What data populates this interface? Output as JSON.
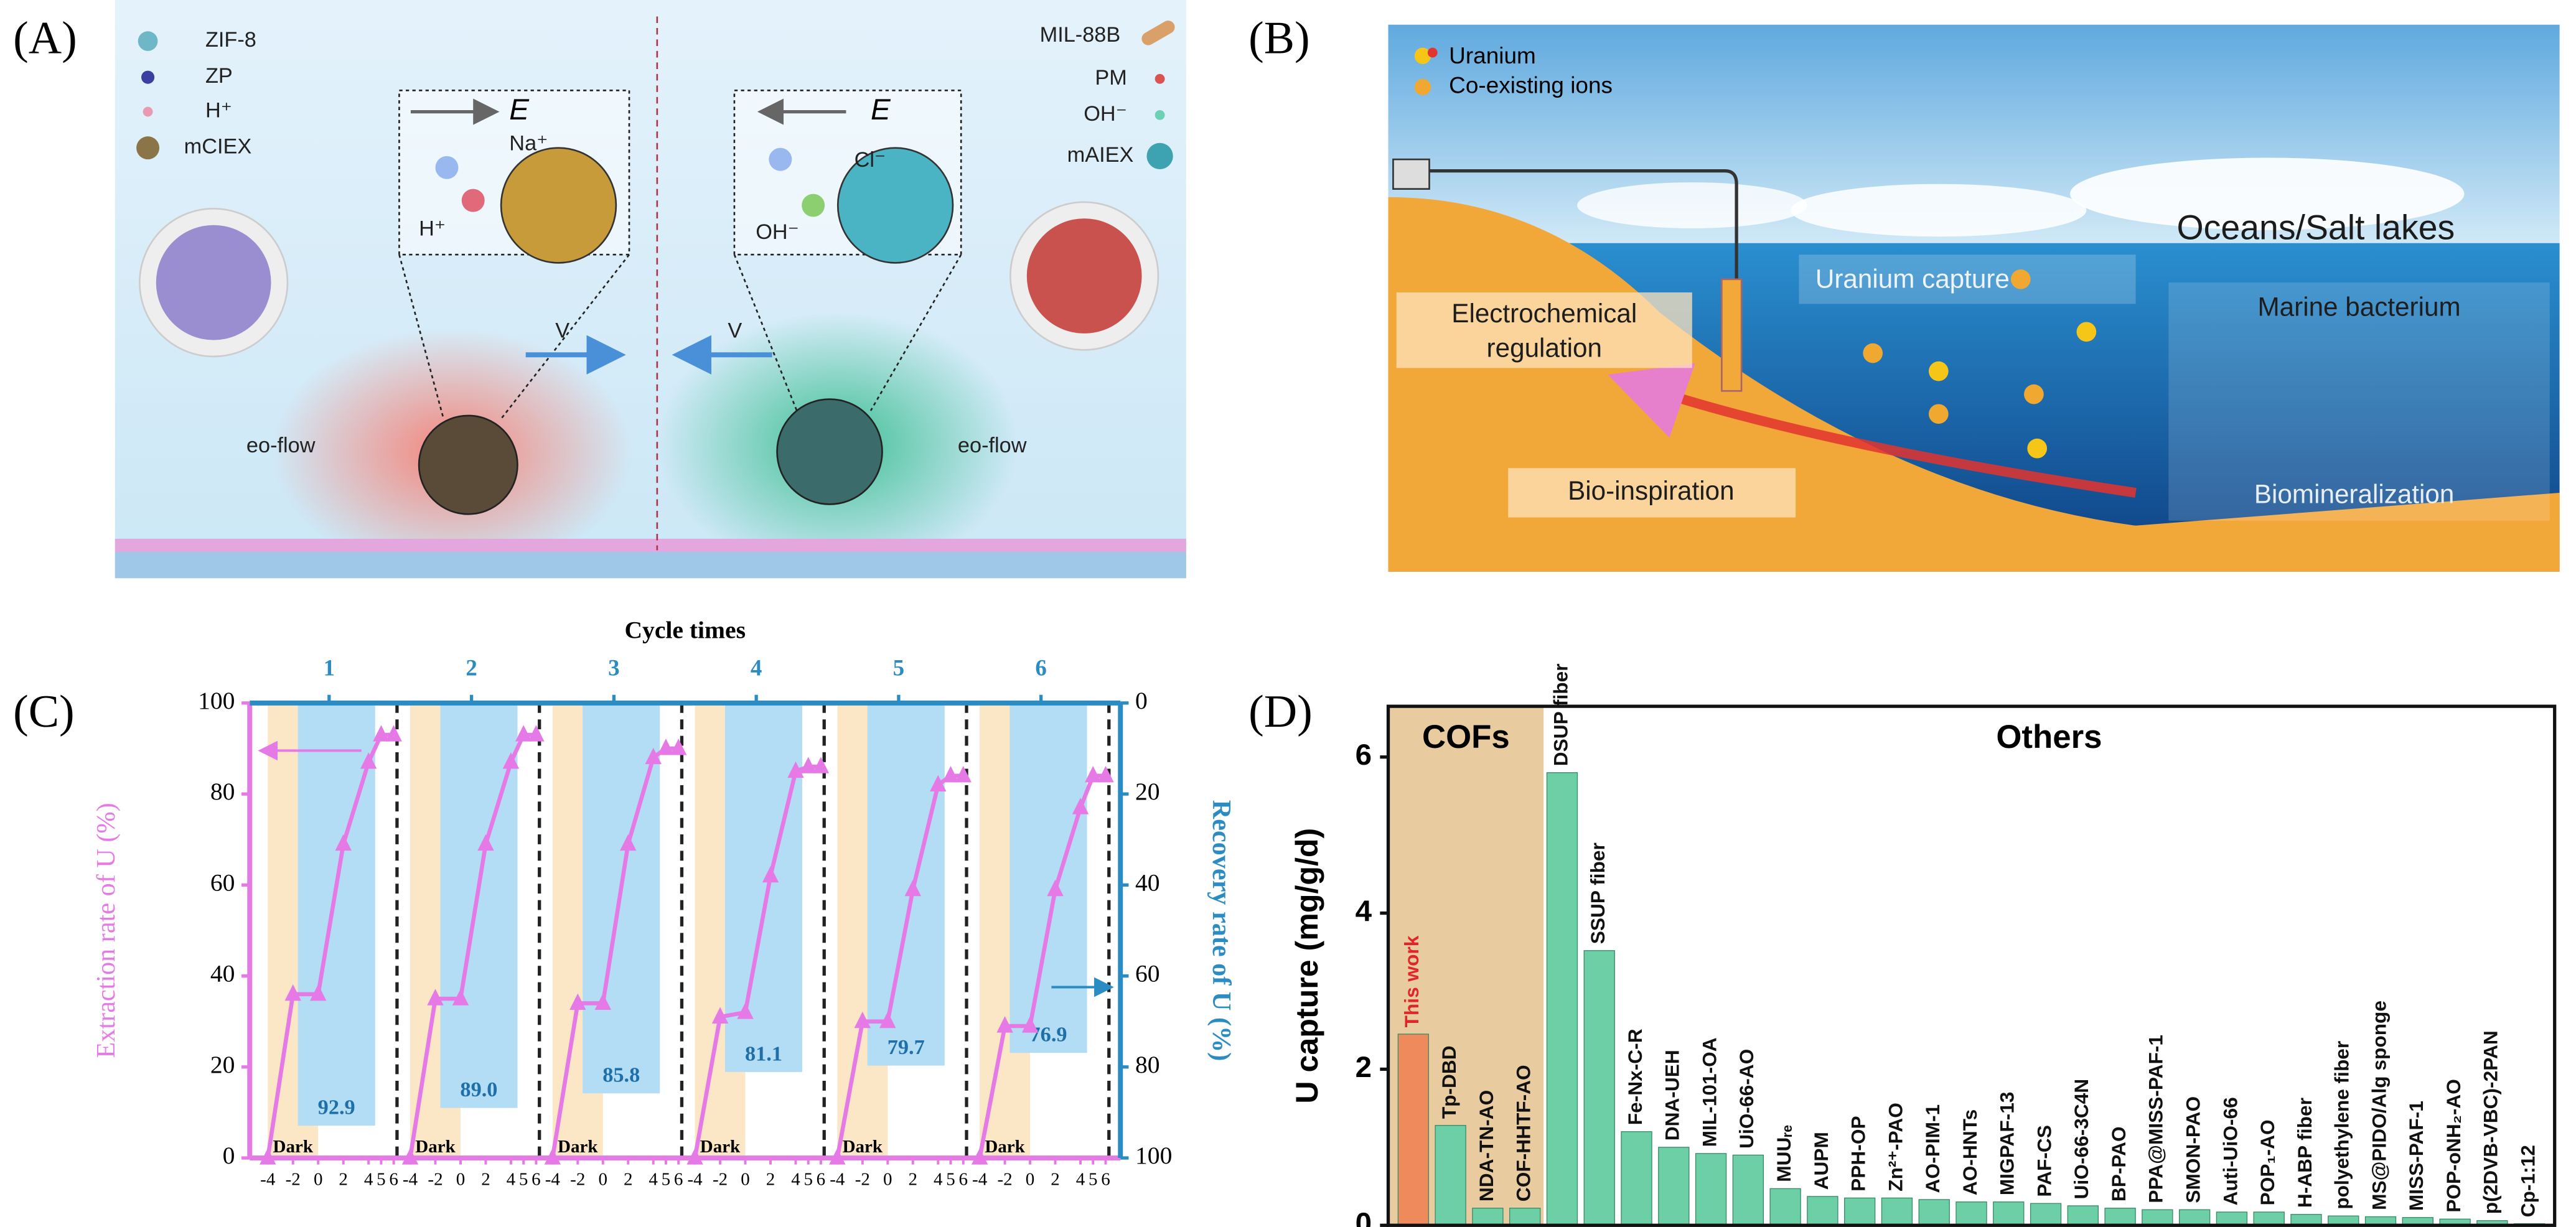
{
  "panel_a": {
    "label": "(A)",
    "legend_left": [
      "ZIF-8",
      "ZP",
      "H⁺",
      "mCIEX"
    ],
    "legend_right": [
      "MIL-88B",
      "PM",
      "OH⁻",
      "mAIEX"
    ],
    "inset_left": {
      "field": "E",
      "ions": [
        "Na⁺",
        "H⁺"
      ]
    },
    "inset_right": {
      "field": "E",
      "ions": [
        "Cl⁻",
        "OH⁻"
      ]
    },
    "velocity": [
      "V",
      "V"
    ],
    "flow": [
      "eo-flow",
      "eo-flow"
    ]
  },
  "panel_b": {
    "label": "(B)",
    "legend": [
      "Uranium",
      "Co-existing ions"
    ],
    "setting": "Oceans/Salt lakes",
    "capture": "Uranium capture",
    "electrochemical": [
      "Electrochemical",
      "regulation"
    ],
    "bacterium": "Marine bacterium",
    "bio": "Bio-inspiration",
    "biomineralization": "Biomineralization"
  },
  "chart_data": [
    {
      "type": "cycle-combo",
      "panel_label": "(C)",
      "title": "Cycle times",
      "cycles": [
        1,
        2,
        3,
        4,
        5,
        6
      ],
      "y_label": "Extraction rate of U (%)",
      "y2_label": "Recovery rate of U (%)",
      "dark_label": "Dark",
      "x": [
        -4,
        -2,
        0,
        2,
        4,
        5,
        6
      ],
      "xlim": [
        -4,
        6
      ],
      "xticks": [
        -4,
        -2,
        0,
        2,
        4,
        5,
        6
      ],
      "ylim": [
        0,
        100
      ],
      "yticks": [
        0,
        20,
        40,
        60,
        80,
        100
      ],
      "y2lim": [
        0,
        100
      ],
      "y2ticks": [
        0,
        20,
        40,
        60,
        80,
        100
      ],
      "y2_inverted": true,
      "extraction_color": "#e57ae6",
      "series": [
        {
          "values": [
            0,
            36,
            36,
            69,
            87,
            93,
            93
          ]
        },
        {
          "values": [
            0,
            35,
            35,
            69,
            87,
            93,
            93
          ]
        },
        {
          "values": [
            0,
            34,
            34,
            69,
            88,
            90,
            90
          ]
        },
        {
          "values": [
            0,
            31,
            32,
            62,
            85,
            86,
            86
          ]
        },
        {
          "values": [
            0,
            30,
            30,
            59,
            82,
            84,
            84
          ]
        },
        {
          "values": [
            0,
            29,
            29,
            59,
            77,
            84,
            84
          ]
        }
      ],
      "recovery": {
        "axis": "y2",
        "color": "#b2ddf4",
        "values": [
          92.9,
          89.0,
          85.8,
          81.1,
          79.7,
          76.9
        ],
        "value_labels": [
          "92.9",
          "89.0",
          "85.8",
          "81.1",
          "79.7",
          "76.9"
        ]
      }
    },
    {
      "type": "bar",
      "panel_label": "(D)",
      "y_label": "U capture (mg/g/d)",
      "groups": [
        {
          "label": "COFs",
          "size": 4,
          "color": "#e9cba0"
        },
        {
          "label": "Others",
          "size": 27
        }
      ],
      "categories": [
        "This work",
        "Tp-DBD",
        "NDA-TN-AO",
        "COF-HHTF-AO",
        "DSUP fiber",
        "SSUP fiber",
        "Fe-Nx-C-R",
        "DNA-UEH",
        "MIL-101-OA",
        "UiO-66-AO",
        "MUUᵣₑ",
        "AUPM",
        "PPH-OP",
        "Zn²⁺-PAO",
        "AO-PIM-1",
        "AO-HNTs",
        "MIGPAF-13",
        "PAF-CS",
        "UiO-66-3C4N",
        "BP-PAO",
        "PPA@MISS-PAF-1",
        "SMON-PAO",
        "Auti-UiO-66",
        "POP₁-AO",
        "H-ABP fiber",
        "polyethylene fiber",
        "MS@PIDO/Alg sponge",
        "MISS-PAF-1",
        "POP-oNH₂-AO",
        "p(2DVB-VBC)-2PAN",
        "Cp-1:12"
      ],
      "values": [
        2.45,
        1.28,
        0.22,
        0.22,
        5.8,
        3.52,
        1.2,
        1.0,
        0.92,
        0.9,
        0.47,
        0.37,
        0.35,
        0.35,
        0.33,
        0.3,
        0.3,
        0.28,
        0.25,
        0.22,
        0.2,
        0.2,
        0.17,
        0.17,
        0.14,
        0.12,
        0.11,
        0.1,
        0.08,
        0.06,
        0.02
      ],
      "colors": [
        "#ee8a5c",
        "#6ccfa5",
        "#6ccfa5",
        "#6ccfa5",
        "#6ccfa5",
        "#6ccfa5",
        "#6ccfa5",
        "#6ccfa5",
        "#6ccfa5",
        "#6ccfa5",
        "#6ccfa5",
        "#6ccfa5",
        "#6ccfa5",
        "#6ccfa5",
        "#6ccfa5",
        "#6ccfa5",
        "#6ccfa5",
        "#6ccfa5",
        "#6ccfa5",
        "#6ccfa5",
        "#6ccfa5",
        "#6ccfa5",
        "#6ccfa5",
        "#6ccfa5",
        "#6ccfa5",
        "#6ccfa5",
        "#6ccfa5",
        "#6ccfa5",
        "#6ccfa5",
        "#6ccfa5",
        "#6ccfa5"
      ],
      "ylim": [
        0,
        6.65
      ],
      "yticks": [
        0,
        2,
        4,
        6
      ]
    }
  ]
}
